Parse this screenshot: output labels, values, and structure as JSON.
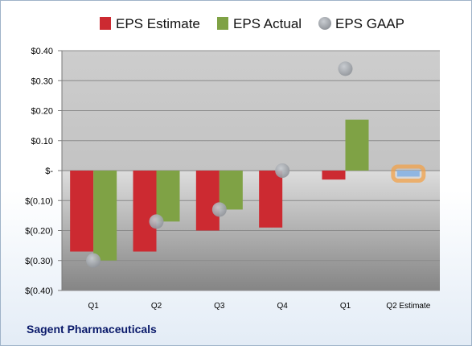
{
  "company": "Sagent Pharmaceuticals",
  "colors": {
    "estimate": "#cc2a31",
    "actual": "#7fa245",
    "gaap": "#a0a4aa",
    "estimate_highlight_border": "#f2a24a",
    "estimate_highlight_fill": "#8fb6e2"
  },
  "chart_data": {
    "type": "bar",
    "categories": [
      "Q1",
      "Q2",
      "Q3",
      "Q4",
      "Q1",
      "Q2 Estimate"
    ],
    "series": [
      {
        "name": "EPS Estimate",
        "type": "bar",
        "values": [
          -0.27,
          -0.27,
          -0.2,
          -0.19,
          -0.03,
          null
        ]
      },
      {
        "name": "EPS Actual",
        "type": "bar",
        "values": [
          -0.3,
          -0.17,
          -0.13,
          null,
          0.17,
          null
        ]
      },
      {
        "name": "EPS GAAP",
        "type": "scatter",
        "values": [
          -0.3,
          -0.17,
          -0.13,
          0.0,
          0.34,
          null
        ]
      }
    ],
    "forecast": {
      "category": "Q2 Estimate",
      "value": -0.02
    },
    "yticks": [
      {
        "value": 0.4,
        "label": "$0.40"
      },
      {
        "value": 0.3,
        "label": "$0.30"
      },
      {
        "value": 0.2,
        "label": "$0.20"
      },
      {
        "value": 0.1,
        "label": "$0.10"
      },
      {
        "value": 0.0,
        "label": "$-"
      },
      {
        "value": -0.1,
        "label": "$(0.10)"
      },
      {
        "value": -0.2,
        "label": "$(0.20)"
      },
      {
        "value": -0.3,
        "label": "$(0.30)"
      },
      {
        "value": -0.4,
        "label": "$(0.40)"
      }
    ],
    "ylim": [
      -0.4,
      0.4
    ],
    "grid": true,
    "legend_position": "top"
  }
}
